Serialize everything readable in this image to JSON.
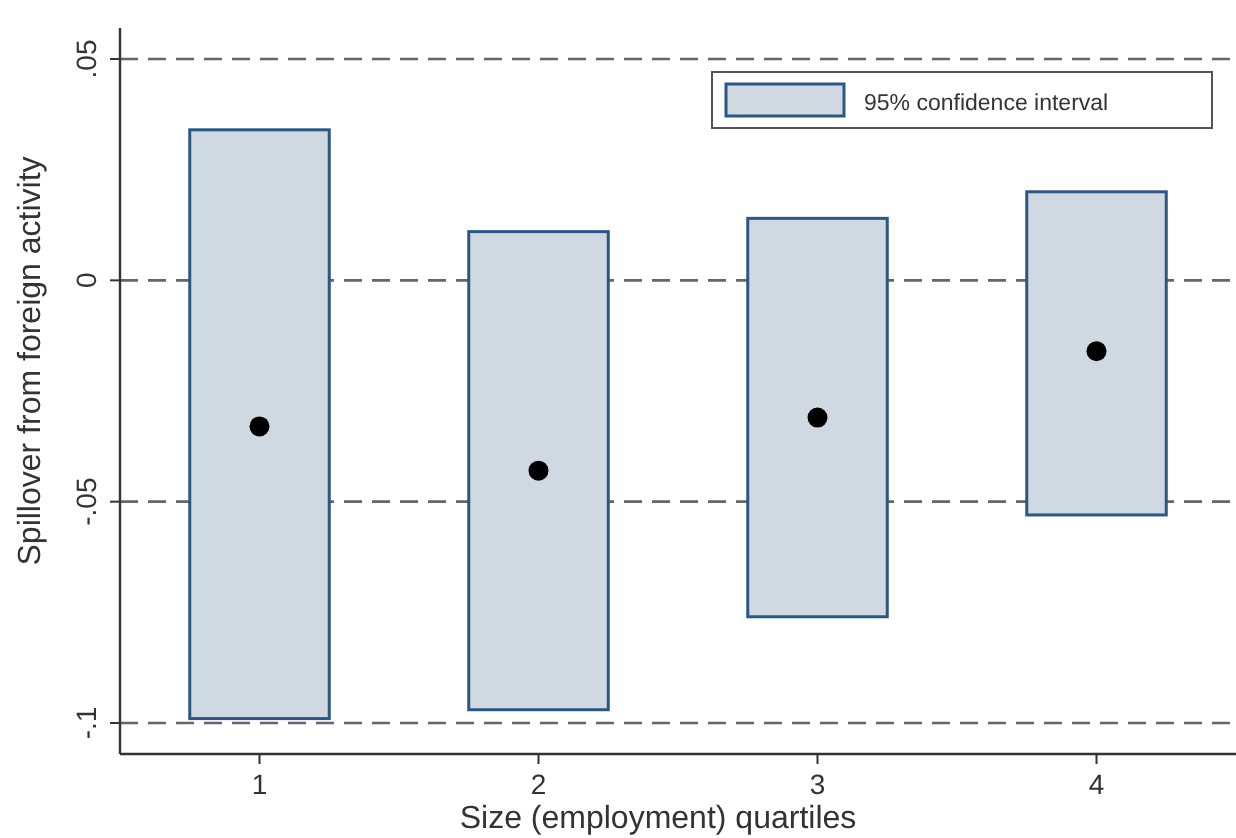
{
  "chart_data": {
    "type": "bar",
    "xlabel": "Size (employment) quartiles",
    "ylabel": "Spillover from foreign activity",
    "categories": [
      "1",
      "2",
      "3",
      "4"
    ],
    "series": [
      {
        "name": "95% confidence interval",
        "color": "#d0d9e2",
        "base": [
          -0.099,
          -0.097,
          -0.076,
          -0.053
        ],
        "values": [
          0.133,
          0.108,
          0.09,
          0.073
        ]
      },
      {
        "type": "scatter",
        "color": "#000000",
        "x": [
          "1",
          "2",
          "3",
          "4"
        ],
        "values": [
          -0.033,
          -0.043,
          -0.031,
          -0.016
        ]
      }
    ],
    "ylim": [
      -0.107,
      0.057
    ],
    "yticks": [
      {
        "value": 0.05,
        "label": ".05"
      },
      0,
      {
        "value": -0.05,
        "label": "-.05"
      },
      {
        "value": -0.1,
        "label": "-.1"
      }
    ],
    "grid": "y",
    "line_style": "dashed",
    "marker": "circle",
    "legend": "top right"
  }
}
